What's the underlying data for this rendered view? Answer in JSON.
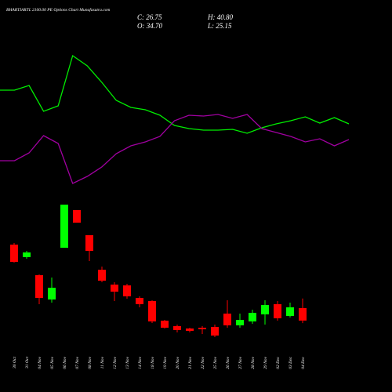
{
  "chart_data": [
    {
      "type": "line",
      "title": "BHARTIARTL 2100.00 PE Options Chart Munafasutra.com",
      "series": [
        {
          "color": "#00ee00",
          "values": [
            67.5,
            67.5,
            70.5,
            54,
            57.5,
            89.5,
            83,
            72.5,
            61,
            56.5,
            55,
            51.5,
            45,
            43,
            42,
            42,
            42.5,
            40,
            43.5,
            46,
            48,
            50.5,
            46.5,
            50,
            46
          ]
        },
        {
          "color": "#a000a0",
          "values": [
            22.5,
            22.5,
            27.5,
            38.5,
            33.5,
            8,
            12.5,
            18.5,
            27,
            32,
            34.5,
            38,
            48,
            51.5,
            51,
            52,
            49.5,
            52,
            43,
            40.5,
            38,
            34.5,
            36.5,
            32,
            36
          ]
        }
      ],
      "ylim": [
        0,
        100
      ]
    },
    {
      "type": "candlestick",
      "summary_labels": [
        "C: 26.75",
        "O: 34.70",
        "H: 40.80",
        "L: 25.15"
      ],
      "categories": [
        "30 Oct",
        "31 Oct",
        "04 Nov",
        "05 Nov",
        "06 Nov",
        "07 Nov",
        "08 Nov",
        "11 Nov",
        "12 Nov",
        "13 Nov",
        "14 Nov",
        "18 Nov",
        "19 Nov",
        "20 Nov",
        "21 Nov",
        "22 Nov",
        "25 Nov",
        "26 Nov",
        "27 Nov",
        "28 Nov",
        "29 Nov",
        "02 Dec",
        "03 Dec",
        "04 Dec"
      ],
      "open": [
        75.2,
        67.2,
        55.7,
        40.2,
        73.2,
        97.2,
        81.2,
        59.2,
        49.7,
        49.2,
        41.2,
        39.2,
        26.7,
        23.2,
        21.7,
        22.2,
        22.7,
        31.2,
        23.7,
        26.2,
        30.7,
        37.2,
        29.7,
        34.7
      ],
      "close": [
        64.2,
        70.2,
        41.2,
        47.7,
        100.7,
        89.2,
        71.2,
        52.2,
        45.2,
        42.2,
        37.2,
        26.2,
        22.2,
        20.7,
        20.2,
        21.2,
        17.2,
        23.7,
        27.2,
        31.7,
        36.7,
        28.2,
        35.2,
        26.75
      ],
      "high": [
        76.2,
        71.2,
        56.2,
        54.2,
        100.7,
        97.2,
        81.2,
        61.2,
        51.2,
        50.2,
        42.2,
        39.7,
        27.2,
        24.2,
        22.2,
        23.2,
        24.2,
        39.7,
        31.2,
        33.7,
        39.7,
        39.2,
        38.2,
        40.8
      ],
      "low": [
        63.7,
        66.2,
        37.2,
        38.2,
        73.2,
        89.2,
        64.7,
        51.2,
        39.2,
        40.7,
        35.2,
        25.2,
        21.7,
        19.2,
        19.2,
        18.2,
        16.2,
        22.2,
        22.2,
        24.7,
        24.2,
        26.7,
        28.7,
        25.15
      ],
      "up_color": "#00ff00",
      "down_color": "#ff0000",
      "ylim": [
        11.2,
        106.2
      ]
    }
  ]
}
